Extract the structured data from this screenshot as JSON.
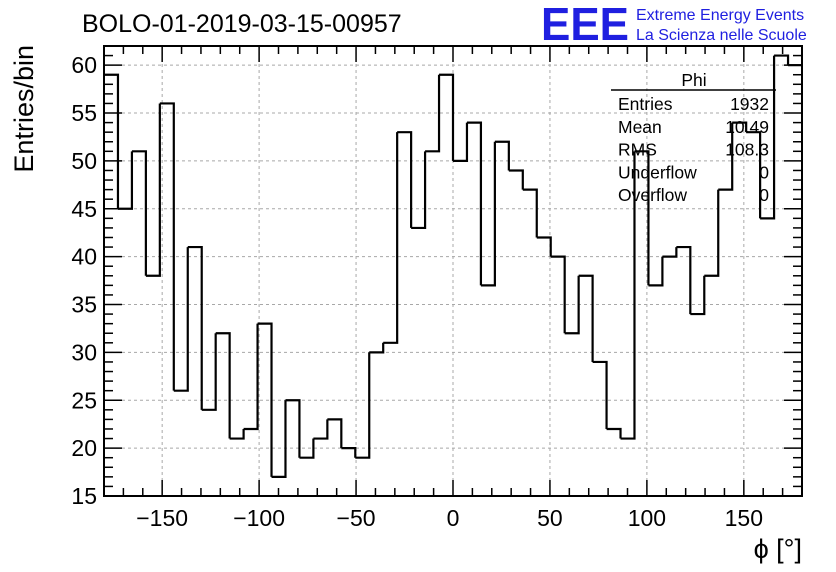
{
  "chart_data": {
    "type": "histogram",
    "title": "BOLO-01-2019-03-15-00957",
    "xlabel": "ϕ [°]",
    "ylabel": "Entries/bin",
    "xlim": [
      -180,
      180
    ],
    "ylim": [
      15,
      62
    ],
    "bin_width": 7.2,
    "x_ticks": [
      -150,
      -100,
      -50,
      0,
      50,
      100,
      150
    ],
    "x_tick_labels": [
      "−150",
      "−100",
      "−50",
      "0",
      "50",
      "100",
      "150"
    ],
    "y_ticks": [
      15,
      20,
      25,
      30,
      35,
      40,
      45,
      50,
      55,
      60
    ],
    "y_tick_labels": [
      "15",
      "20",
      "25",
      "30",
      "35",
      "40",
      "45",
      "50",
      "55",
      "60"
    ],
    "values": [
      59,
      45,
      51,
      38,
      56,
      26,
      41,
      24,
      32,
      21,
      22,
      33,
      17,
      25,
      19,
      21,
      23,
      20,
      19,
      30,
      31,
      53,
      43,
      51,
      59,
      50,
      54,
      37,
      52,
      49,
      47,
      42,
      40,
      32,
      38,
      29,
      22,
      21,
      51,
      37,
      40,
      41,
      34,
      38,
      47,
      54,
      53,
      44,
      61,
      60
    ],
    "grid": true,
    "line_color": "#000000",
    "stats_box": {
      "name": "Phi",
      "rows": [
        {
          "label": "Entries",
          "value": "1932"
        },
        {
          "label": "Mean",
          "value": "10.49"
        },
        {
          "label": "RMS",
          "value": "108.3"
        },
        {
          "label": "Underflow",
          "value": "0"
        },
        {
          "label": "Overflow",
          "value": "0"
        }
      ]
    }
  },
  "logo": {
    "mark": "EEE",
    "line1": "Extreme Energy Events",
    "line2": "La Scienza nelle Scuole",
    "color": "#1f1fe0"
  }
}
